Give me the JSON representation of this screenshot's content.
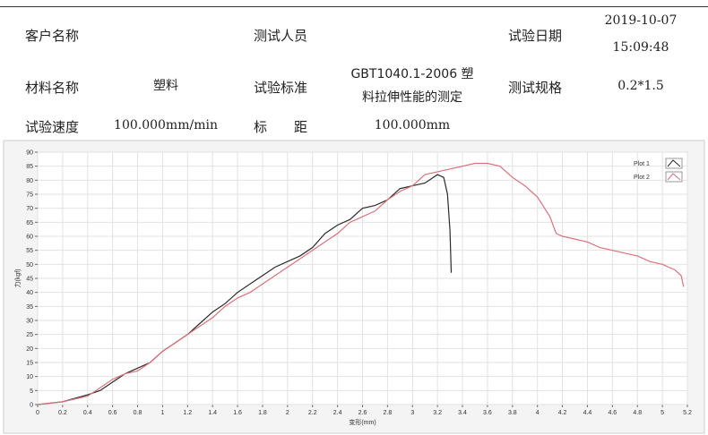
{
  "header": {
    "rows": [
      [
        {
          "label": "客户名称"
        },
        {
          "label": "测试人员"
        },
        {
          "label": "试验日期",
          "value": [
            "2019-10-07",
            "15:09:48"
          ]
        }
      ],
      [
        {
          "label": "材料名称",
          "value": [
            "塑料"
          ]
        },
        {
          "label": "试验标准",
          "value": [
            "GBT1040.1-2006 塑",
            "料拉伸性能的测定"
          ]
        },
        {
          "label": "测试规格",
          "value": [
            "0.2*1.5"
          ]
        }
      ],
      [
        {
          "label": "试验速度",
          "value": [
            "100.000mm/min"
          ]
        },
        {
          "label": "标　　距",
          "value": [
            "100.000mm"
          ]
        }
      ]
    ]
  },
  "chart_data": {
    "type": "line",
    "xlabel": "变形(mm)",
    "ylabel": "力(kgf)",
    "grid": true,
    "legend": "top-right",
    "xlim": [
      0,
      5.2
    ],
    "xticks": [
      0,
      0.2,
      0.4,
      0.6,
      0.8,
      1,
      1.2,
      1.4,
      1.6,
      1.8,
      2,
      2.2,
      2.4,
      2.6,
      2.8,
      3,
      3.2,
      3.4,
      3.6,
      3.8,
      4,
      4.2,
      4.4,
      4.6,
      4.8,
      5,
      5.2
    ],
    "ylim": [
      0,
      90
    ],
    "yticks": [
      0,
      5,
      10,
      15,
      20,
      25,
      30,
      35,
      40,
      45,
      50,
      55,
      60,
      65,
      70,
      75,
      80,
      85,
      90
    ],
    "series": [
      {
        "name": "Plot 1",
        "color": "#2b2b2b",
        "x": [
          0,
          0.2,
          0.4,
          0.5,
          0.6,
          0.7,
          0.8,
          0.9,
          1.0,
          1.1,
          1.2,
          1.3,
          1.4,
          1.5,
          1.6,
          1.7,
          1.8,
          1.9,
          2.0,
          2.1,
          2.2,
          2.3,
          2.4,
          2.5,
          2.6,
          2.7,
          2.8,
          2.9,
          3.0,
          3.1,
          3.2,
          3.25,
          3.28,
          3.3,
          3.31
        ],
        "values": [
          0,
          1,
          3.5,
          5,
          8,
          11,
          13,
          15,
          19,
          22,
          25,
          29,
          33,
          36,
          40,
          43,
          46,
          49,
          51,
          53,
          56,
          61,
          64,
          66,
          70,
          71,
          73,
          77,
          78,
          79,
          82,
          81,
          75,
          62,
          47
        ]
      },
      {
        "name": "Plot 2",
        "color": "#d9737a",
        "x": [
          0,
          0.2,
          0.4,
          0.5,
          0.6,
          0.7,
          0.8,
          0.9,
          1.0,
          1.1,
          1.2,
          1.3,
          1.4,
          1.5,
          1.6,
          1.7,
          1.8,
          1.9,
          2.0,
          2.1,
          2.2,
          2.3,
          2.4,
          2.5,
          2.6,
          2.7,
          2.8,
          2.9,
          3.0,
          3.1,
          3.2,
          3.3,
          3.4,
          3.5,
          3.6,
          3.7,
          3.8,
          3.9,
          4.0,
          4.1,
          4.15,
          4.2,
          4.3,
          4.4,
          4.5,
          4.6,
          4.7,
          4.8,
          4.9,
          5.0,
          5.1,
          5.15,
          5.17
        ],
        "values": [
          0,
          1,
          3,
          6,
          9,
          11,
          12,
          15,
          19,
          22,
          25,
          28,
          31,
          35,
          38,
          40,
          43,
          46,
          49,
          52,
          55,
          58,
          61,
          65,
          67,
          69,
          73,
          76,
          78,
          82,
          83,
          84,
          85,
          86,
          86,
          85,
          81,
          78,
          74,
          67,
          61,
          60,
          59,
          58,
          56,
          55,
          54,
          53,
          51,
          50,
          48,
          46,
          42
        ]
      }
    ]
  }
}
